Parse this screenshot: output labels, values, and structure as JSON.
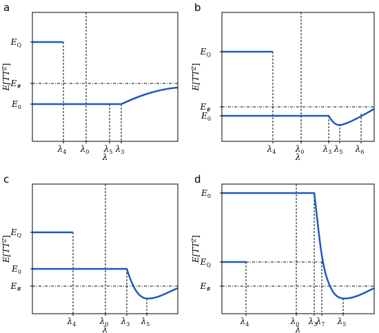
{
  "panels": [
    {
      "label": "a",
      "xlabel": "λ",
      "ylabel": {
        "base": "E[TT",
        "sup": "Z",
        "end": "]"
      },
      "ytick_labels": [
        {
          "base": "E",
          "sub": "Q"
        },
        {
          "base": "E",
          "sub": "#"
        },
        {
          "base": "E",
          "sub": "0"
        }
      ],
      "xtick_labels": [
        {
          "base": "λ",
          "sub": "4"
        },
        {
          "base": "λ",
          "sub": "0"
        },
        {
          "base": "λ",
          "sub": "5"
        },
        {
          "base": "λ",
          "sub": "3"
        }
      ]
    },
    {
      "label": "b",
      "xlabel": "λ",
      "ylabel": {
        "base": "E[TT",
        "sup": "Z",
        "end": "]"
      },
      "ytick_labels": [
        {
          "base": "E",
          "sub": "Q"
        },
        {
          "base": "E",
          "sub": "#"
        },
        {
          "base": "E",
          "sub": "0"
        }
      ],
      "xtick_labels": [
        {
          "base": "λ",
          "sub": "4"
        },
        {
          "base": "λ",
          "sub": "0"
        },
        {
          "base": "λ",
          "sub": "3"
        },
        {
          "base": "λ",
          "sub": "5"
        },
        {
          "base": "λ",
          "sub": "6"
        }
      ]
    },
    {
      "label": "c",
      "xlabel": "λ",
      "ylabel": {
        "base": "E[TT",
        "sup": "Z",
        "end": "]"
      },
      "ytick_labels": [
        {
          "base": "E",
          "sub": "Q"
        },
        {
          "base": "E",
          "sub": "0"
        },
        {
          "base": "E",
          "sub": "#"
        }
      ],
      "xtick_labels": [
        {
          "base": "λ",
          "sub": "4"
        },
        {
          "base": "λ",
          "sub": "0"
        },
        {
          "base": "λ",
          "sub": "3"
        },
        {
          "base": "λ",
          "sub": "5"
        }
      ]
    },
    {
      "label": "d",
      "xlabel": "λ",
      "ylabel": {
        "base": "E[TT",
        "sup": "Z",
        "end": "]"
      },
      "ytick_labels": [
        {
          "base": "E",
          "sub": "0"
        },
        {
          "base": "E",
          "sub": "Q"
        },
        {
          "base": "E",
          "sub": "#"
        }
      ],
      "xtick_labels": [
        {
          "base": "λ",
          "sub": "4"
        },
        {
          "base": "λ",
          "sub": "0"
        },
        {
          "base": "λ",
          "sub": "3"
        },
        {
          "base": "λ",
          "sub": "7"
        },
        {
          "base": "λ",
          "sub": "5"
        }
      ]
    }
  ]
}
